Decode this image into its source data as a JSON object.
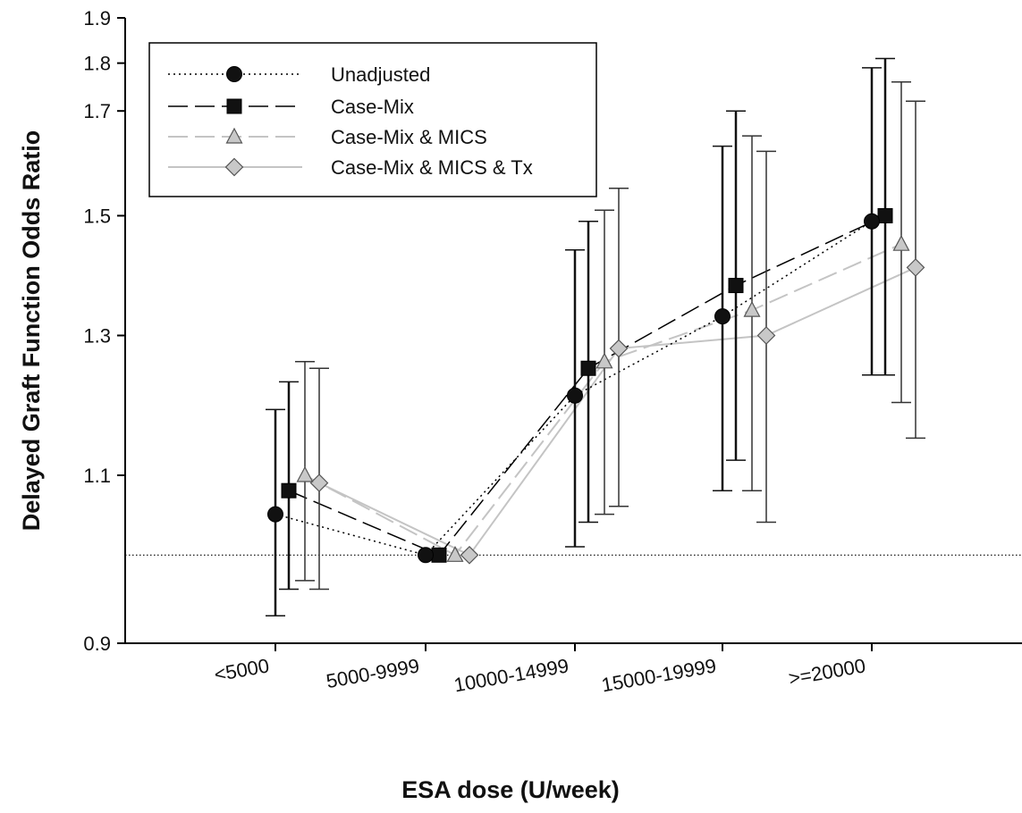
{
  "chart_data": {
    "type": "line",
    "xlabel": "ESA dose (U/week)",
    "ylabel": "Delayed Graft Function Odds Ratio",
    "categories": [
      "<5000",
      "5000-9999",
      "10000-14999",
      "15000-19999",
      ">=20000"
    ],
    "ylim": [
      0.9,
      1.9
    ],
    "yscale": "log",
    "yticks": [
      "0.9",
      "1.1",
      "1.3",
      "1.5",
      "1.7",
      "1.8",
      "1.9"
    ],
    "reference_line": 1.0,
    "grid": false,
    "legend_position": "top-left",
    "series": [
      {
        "name": "Unadjusted",
        "marker": "circle",
        "line_style": "dotted",
        "color": "#000000",
        "values": [
          1.05,
          1.0,
          1.21,
          1.33,
          1.49
        ],
        "lower": [
          0.93,
          1.0,
          1.01,
          1.08,
          1.24
        ],
        "upper": [
          1.19,
          1.0,
          1.44,
          1.63,
          1.79
        ]
      },
      {
        "name": "Case-Mix",
        "marker": "square",
        "line_style": "long-dash",
        "color": "#000000",
        "values": [
          1.08,
          1.0,
          1.25,
          1.38,
          1.5
        ],
        "lower": [
          0.96,
          1.0,
          1.04,
          1.12,
          1.24
        ],
        "upper": [
          1.23,
          1.0,
          1.49,
          1.7,
          1.81
        ]
      },
      {
        "name": "Case-Mix & MICS",
        "marker": "triangle",
        "line_style": "dashed-light",
        "color": "#c4c4c4",
        "values": [
          1.1,
          1.0,
          1.26,
          1.34,
          1.45
        ],
        "lower": [
          0.97,
          1.0,
          1.05,
          1.08,
          1.2
        ],
        "upper": [
          1.26,
          1.0,
          1.51,
          1.65,
          1.76
        ]
      },
      {
        "name": "Case-Mix & MICS & Tx",
        "marker": "diamond",
        "line_style": "solid-light",
        "color": "#c4c4c4",
        "values": [
          1.09,
          1.0,
          1.28,
          1.3,
          1.41
        ],
        "lower": [
          0.96,
          1.0,
          1.06,
          1.04,
          1.15
        ],
        "upper": [
          1.25,
          1.0,
          1.55,
          1.62,
          1.72
        ]
      }
    ]
  }
}
